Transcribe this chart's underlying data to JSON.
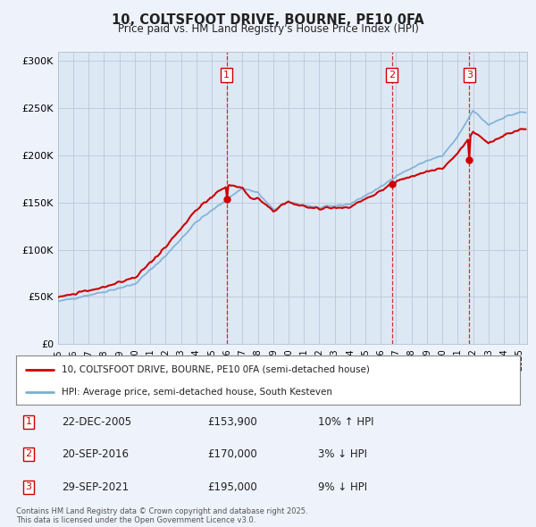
{
  "title": "10, COLTSFOOT DRIVE, BOURNE, PE10 0FA",
  "subtitle": "Price paid vs. HM Land Registry's House Price Index (HPI)",
  "background_color": "#eef2fb",
  "plot_bg_color": "#dde8f5",
  "ylabel": "",
  "xlabel": "",
  "ylim": [
    0,
    310000
  ],
  "yticks": [
    0,
    50000,
    100000,
    150000,
    200000,
    250000,
    300000
  ],
  "ytick_labels": [
    "£0",
    "£50K",
    "£100K",
    "£150K",
    "£200K",
    "£250K",
    "£300K"
  ],
  "hpi_color": "#7aafd4",
  "price_color": "#cc0000",
  "legend_house": "10, COLTSFOOT DRIVE, BOURNE, PE10 0FA (semi-detached house)",
  "legend_hpi": "HPI: Average price, semi-detached house, South Kesteven",
  "sale1_date": "22-DEC-2005",
  "sale1_price": "£153,900",
  "sale1_hpi": "10% ↑ HPI",
  "sale1_x": 2005.97,
  "sale1_y": 153900,
  "sale2_date": "20-SEP-2016",
  "sale2_price": "£170,000",
  "sale2_hpi": "3% ↓ HPI",
  "sale2_x": 2016.72,
  "sale2_y": 170000,
  "sale3_date": "29-SEP-2021",
  "sale3_price": "£195,000",
  "sale3_hpi": "9% ↓ HPI",
  "sale3_x": 2021.75,
  "sale3_y": 195000,
  "footer": "Contains HM Land Registry data © Crown copyright and database right 2025.\nThis data is licensed under the Open Government Licence v3.0.",
  "xmin": 1995.0,
  "xmax": 2025.5
}
